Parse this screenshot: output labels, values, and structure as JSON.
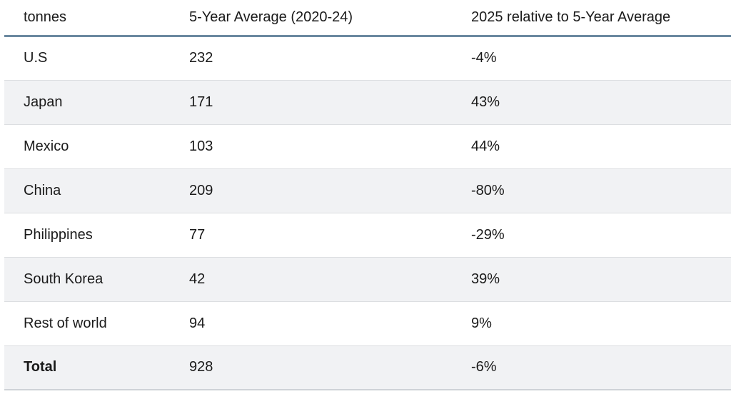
{
  "chart_data": {
    "type": "table",
    "unit": "tonnes",
    "columns": [
      "tonnes",
      "5-Year Average (2020-24)",
      "2025 relative to 5-Year Average"
    ],
    "rows": [
      {
        "cells": [
          "U.S",
          "232",
          "-4%"
        ],
        "bold": false
      },
      {
        "cells": [
          "Japan",
          "171",
          "43%"
        ],
        "bold": false
      },
      {
        "cells": [
          "Mexico",
          "103",
          "44%"
        ],
        "bold": false
      },
      {
        "cells": [
          "China",
          "209",
          "-80%"
        ],
        "bold": false
      },
      {
        "cells": [
          "Philippines",
          "77",
          "-29%"
        ],
        "bold": false
      },
      {
        "cells": [
          "South Korea",
          "42",
          "39%"
        ],
        "bold": false
      },
      {
        "cells": [
          "Rest of world",
          "94",
          "9%"
        ],
        "bold": false
      },
      {
        "cells": [
          "Total",
          "928",
          "-6%"
        ],
        "bold": true
      }
    ],
    "values": {
      "categories": [
        "U.S",
        "Japan",
        "Mexico",
        "China",
        "Philippines",
        "South Korea",
        "Rest of world",
        "Total"
      ],
      "five_year_average_2020_24_tonnes": [
        232,
        171,
        103,
        209,
        77,
        42,
        94,
        928
      ],
      "change_2025_vs_5yr_avg_percent": [
        -4,
        43,
        44,
        -80,
        -29,
        39,
        9,
        -6
      ]
    },
    "layout": {
      "striped": true,
      "stripe_start_row": 2,
      "grid": "horizontal-only"
    }
  },
  "colors": {
    "header_border": "#6b89a0",
    "stripe": "#f1f2f4",
    "row_border": "#dcdee1",
    "row_border_bottom": "#cfd3d7",
    "text": "#1a1a1a",
    "background": "#ffffff"
  }
}
